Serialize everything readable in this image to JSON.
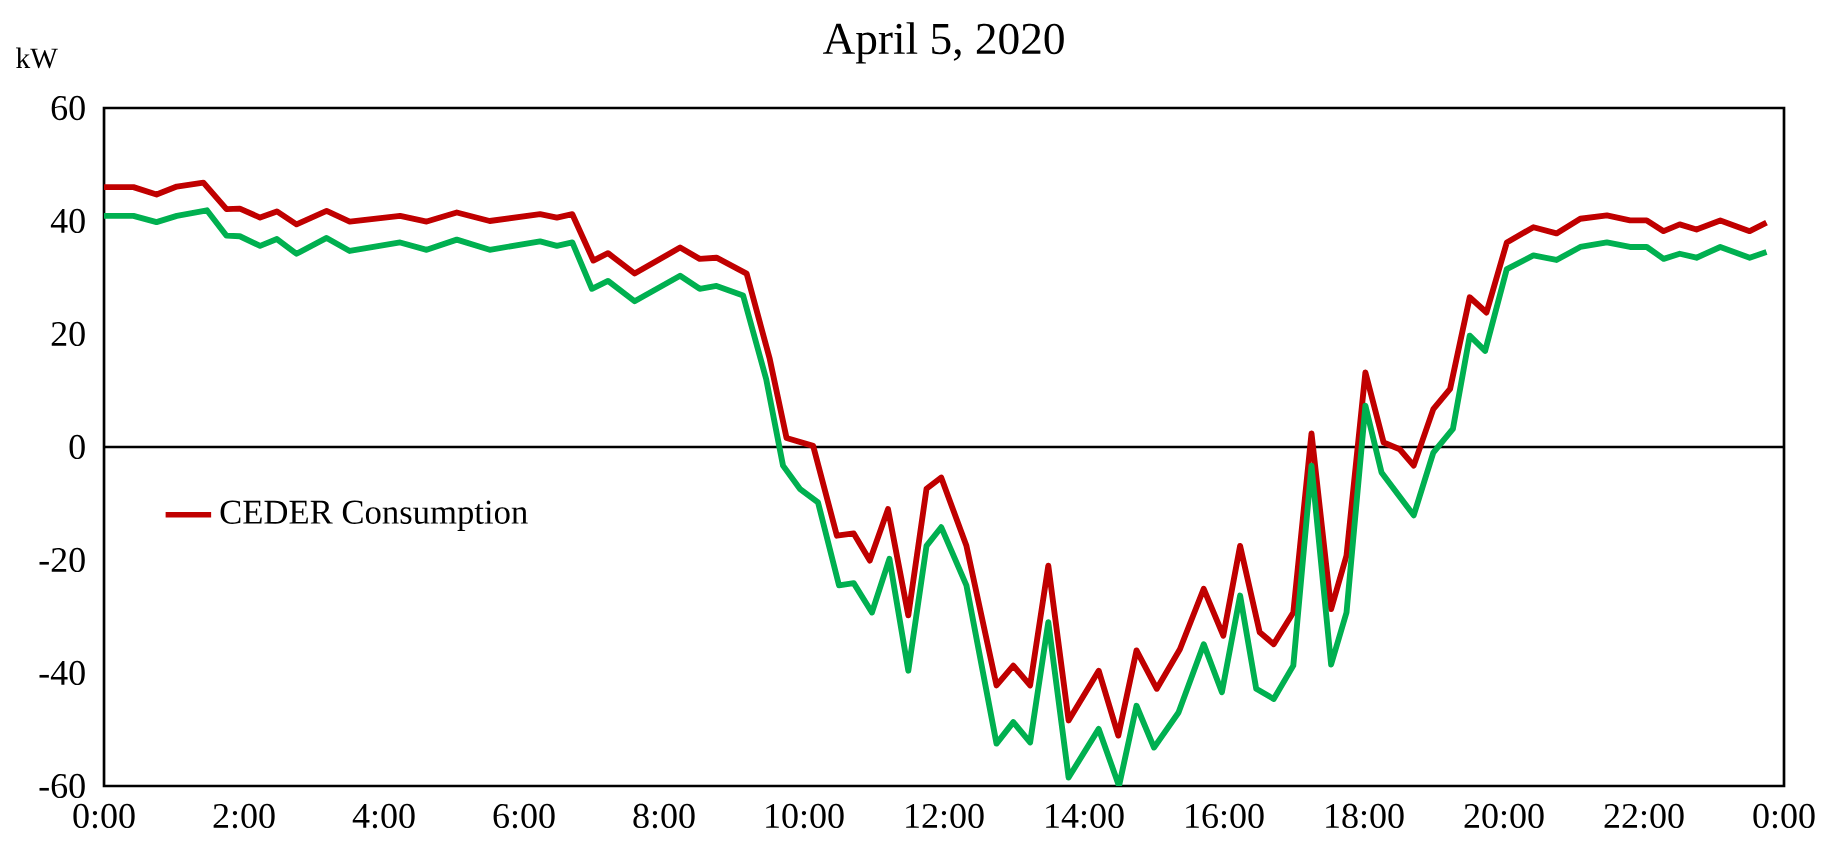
{
  "chart_data": {
    "type": "line",
    "title": "April 5, 2020",
    "ylabel": "kW",
    "xlim": [
      0,
      24
    ],
    "xticks": [
      {
        "value": 0,
        "label": "0:00"
      },
      {
        "value": 2,
        "label": "2:00"
      },
      {
        "value": 4,
        "label": "4:00"
      },
      {
        "value": 6,
        "label": "6:00"
      },
      {
        "value": 8,
        "label": "8:00"
      },
      {
        "value": 10,
        "label": "10:00"
      },
      {
        "value": 12,
        "label": "12:00"
      },
      {
        "value": 14,
        "label": "14:00"
      },
      {
        "value": 16,
        "label": "16:00"
      },
      {
        "value": 18,
        "label": "18:00"
      },
      {
        "value": 20,
        "label": "20:00"
      },
      {
        "value": 22,
        "label": "22:00"
      },
      {
        "value": 24,
        "label": "0:00"
      }
    ],
    "ylim": [
      -60,
      60
    ],
    "yticks": [
      -60,
      -40,
      -20,
      0,
      20,
      40,
      60
    ],
    "ref_lines": [
      {
        "axis": "y",
        "value": 0,
        "color": "#000000"
      }
    ],
    "legend": "left",
    "marker": "none",
    "line_style": "solid",
    "series": [
      {
        "name": "CEDER Consumption",
        "color": "#c00000",
        "x": [
          0,
          0.42,
          0.75,
          1.04,
          1.42,
          1.75,
          1.94,
          2.23,
          2.47,
          2.75,
          3.18,
          3.51,
          4.23,
          4.61,
          5.04,
          5.51,
          6.23,
          6.47,
          6.69,
          6.99,
          7.2,
          7.58,
          8.23,
          8.51,
          8.75,
          9.18,
          9.51,
          9.75,
          10.13,
          10.47,
          10.71,
          10.94,
          11.2,
          11.49,
          11.75,
          11.96,
          12.32,
          12.75,
          12.99,
          13.23,
          13.49,
          13.78,
          14.21,
          14.49,
          14.75,
          15.04,
          15.37,
          15.71,
          15.99,
          16.23,
          16.51,
          16.71,
          16.99,
          17.25,
          17.53,
          17.75,
          18.02,
          18.28,
          18.51,
          18.71,
          18.99,
          19.23,
          19.51,
          19.75,
          20.04,
          20.42,
          20.75,
          21.09,
          21.47,
          21.8,
          22.04,
          22.28,
          22.51,
          22.75,
          23.09,
          23.51,
          23.75
        ],
        "values": [
          46.0,
          46.0,
          44.7,
          46.1,
          46.8,
          42.1,
          42.2,
          40.6,
          41.7,
          39.4,
          41.8,
          39.9,
          40.9,
          39.9,
          41.5,
          40.0,
          41.2,
          40.6,
          41.2,
          33.0,
          34.3,
          30.7,
          35.3,
          33.3,
          33.5,
          30.7,
          15.6,
          1.6,
          0.2,
          -15.7,
          -15.3,
          -20.1,
          -11.0,
          -29.8,
          -7.4,
          -5.4,
          -17.5,
          -42.2,
          -38.7,
          -42.2,
          -21.0,
          -48.4,
          -39.6,
          -51.1,
          -36.0,
          -42.8,
          -35.8,
          -25.1,
          -33.4,
          -17.5,
          -32.8,
          -34.9,
          -29.3,
          2.4,
          -28.7,
          -19.2,
          13.2,
          0.8,
          -0.4,
          -3.3,
          6.7,
          10.3,
          26.5,
          23.8,
          36.2,
          38.9,
          37.8,
          40.4,
          41.0,
          40.1,
          40.1,
          38.2,
          39.4,
          38.5,
          40.1,
          38.2,
          39.7
        ]
      },
      {
        "color": "#00b050",
        "x": [
          0,
          0.42,
          0.75,
          1.04,
          1.47,
          1.75,
          1.94,
          2.23,
          2.47,
          2.75,
          3.18,
          3.51,
          4.23,
          4.61,
          5.04,
          5.51,
          6.23,
          6.47,
          6.69,
          6.97,
          7.2,
          7.58,
          8.23,
          8.51,
          8.75,
          9.13,
          9.46,
          9.7,
          9.94,
          10.2,
          10.5,
          10.71,
          10.97,
          11.22,
          11.49,
          11.75,
          11.96,
          12.32,
          12.75,
          12.99,
          13.23,
          13.49,
          13.78,
          14.21,
          14.5,
          14.75,
          15.0,
          15.35,
          15.71,
          15.97,
          16.23,
          16.46,
          16.71,
          16.99,
          17.25,
          17.53,
          17.75,
          18.02,
          18.25,
          18.71,
          18.99,
          19.27,
          19.51,
          19.73,
          20.04,
          20.42,
          20.75,
          21.09,
          21.47,
          21.8,
          22.04,
          22.28,
          22.51,
          22.75,
          23.09,
          23.51,
          23.75
        ],
        "values": [
          40.9,
          40.9,
          39.8,
          40.9,
          41.9,
          37.4,
          37.3,
          35.6,
          36.8,
          34.2,
          37.0,
          34.7,
          36.2,
          34.9,
          36.7,
          34.9,
          36.4,
          35.6,
          36.2,
          28.0,
          29.4,
          25.8,
          30.3,
          28.0,
          28.5,
          26.8,
          12.0,
          -3.3,
          -7.4,
          -9.8,
          -24.5,
          -24.1,
          -29.3,
          -19.8,
          -39.6,
          -17.5,
          -14.2,
          -24.5,
          -52.5,
          -48.7,
          -52.3,
          -31.0,
          -58.5,
          -49.9,
          -60.0,
          -45.8,
          -53.2,
          -47.0,
          -34.9,
          -43.4,
          -26.3,
          -42.8,
          -44.6,
          -38.7,
          -3.3,
          -38.5,
          -29.3,
          7.3,
          -4.5,
          -12.1,
          -1.0,
          3.2,
          19.7,
          17.0,
          31.5,
          33.9,
          33.1,
          35.4,
          36.2,
          35.4,
          35.4,
          33.3,
          34.2,
          33.5,
          35.4,
          33.5,
          34.5
        ]
      }
    ]
  }
}
